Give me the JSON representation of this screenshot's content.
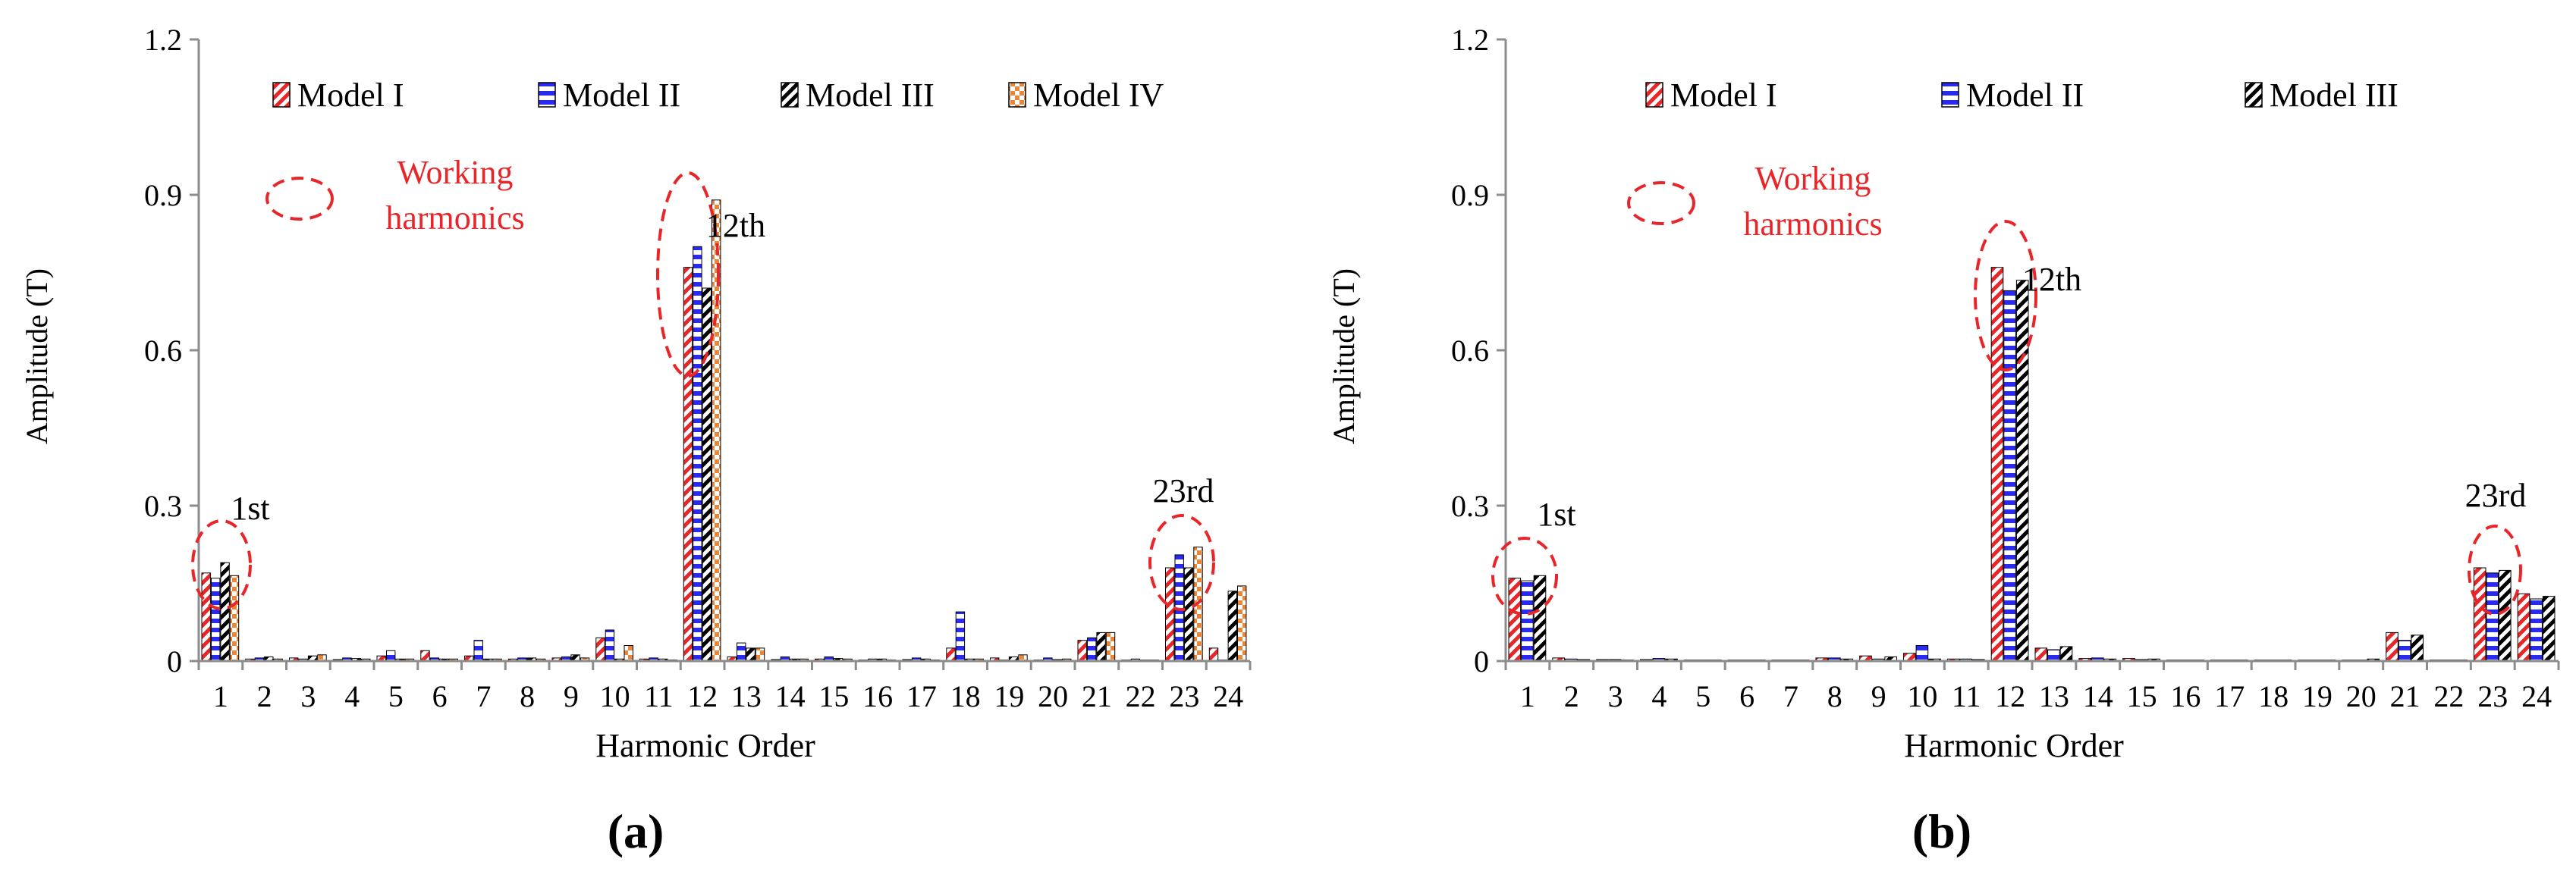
{
  "figure": {
    "panels": [
      {
        "panel_label": "(a)",
        "xlabel": "Harmonic Order",
        "ylabel": "Amplitude (T)",
        "legend": [
          "Model I",
          "Model II",
          "Model III",
          "Model IV"
        ],
        "legend_note": [
          "Working",
          "harmonics"
        ],
        "annotations": [
          "1st",
          "12th",
          "23rd"
        ]
      },
      {
        "panel_label": "(b)",
        "xlabel": "Harmonic Order",
        "ylabel": "Amplitude (T)",
        "legend": [
          "Model I",
          "Model II",
          "Model III"
        ],
        "legend_note": [
          "Working",
          "harmonics"
        ],
        "annotations": [
          "1st",
          "12th",
          "23rd"
        ]
      }
    ],
    "colors": {
      "model_i": "#e8262a",
      "model_ii": "#2a2aee",
      "model_iii": "#000000",
      "model_iv": "#e8873a",
      "ellipse": "#e8262a",
      "axis": "#8c8c8c"
    }
  },
  "chart_data": [
    {
      "type": "bar",
      "title": "",
      "xlabel": "Harmonic Order",
      "ylabel": "Amplitude (T)",
      "ylim": [
        0,
        1.2
      ],
      "yticks": [
        "0",
        "0.3",
        "0.6",
        "0.9",
        "1.2"
      ],
      "categories": [
        "1",
        "2",
        "3",
        "4",
        "5",
        "6",
        "7",
        "8",
        "9",
        "10",
        "11",
        "12",
        "13",
        "14",
        "15",
        "16",
        "17",
        "18",
        "19",
        "20",
        "21",
        "22",
        "23",
        "24"
      ],
      "series": [
        {
          "name": "Model I",
          "values": [
            0.17,
            0.004,
            0.006,
            0.003,
            0.01,
            0.02,
            0.01,
            0.004,
            0.006,
            0.045,
            0.004,
            0.76,
            0.008,
            0.003,
            0.004,
            0.002,
            0.003,
            0.025,
            0.006,
            0.002,
            0.04,
            0.002,
            0.18,
            0.025
          ]
        },
        {
          "name": "Model II",
          "values": [
            0.16,
            0.006,
            0.004,
            0.006,
            0.02,
            0.006,
            0.04,
            0.006,
            0.008,
            0.06,
            0.006,
            0.8,
            0.035,
            0.008,
            0.008,
            0.004,
            0.006,
            0.095,
            0.002,
            0.006,
            0.045,
            0.004,
            0.205,
            0.002
          ]
        },
        {
          "name": "Model III",
          "values": [
            0.19,
            0.008,
            0.01,
            0.005,
            0.004,
            0.004,
            0.004,
            0.006,
            0.012,
            0.004,
            0.004,
            0.72,
            0.025,
            0.004,
            0.005,
            0.004,
            0.004,
            0.004,
            0.008,
            0.003,
            0.055,
            0.002,
            0.18,
            0.135
          ]
        },
        {
          "name": "Model IV",
          "values": [
            0.165,
            0.004,
            0.012,
            0.004,
            0.004,
            0.004,
            0.004,
            0.004,
            0.006,
            0.03,
            0.002,
            0.89,
            0.025,
            0.004,
            0.004,
            0.002,
            0.002,
            0.004,
            0.012,
            0.004,
            0.055,
            0.002,
            0.22,
            0.145
          ]
        }
      ],
      "annotations": [
        {
          "text": "1st",
          "category": "1"
        },
        {
          "text": "12th",
          "category": "12"
        },
        {
          "text": "23rd",
          "category": "23"
        }
      ],
      "legend_position": "top",
      "grid": false
    },
    {
      "type": "bar",
      "title": "",
      "xlabel": "Harmonic Order",
      "ylabel": "Amplitude (T)",
      "ylim": [
        0,
        1.2
      ],
      "yticks": [
        "0",
        "0.3",
        "0.6",
        "0.9",
        "1.2"
      ],
      "categories": [
        "1",
        "2",
        "3",
        "4",
        "5",
        "6",
        "7",
        "8",
        "9",
        "10",
        "11",
        "12",
        "13",
        "14",
        "15",
        "16",
        "17",
        "18",
        "19",
        "20",
        "21",
        "22",
        "23",
        "24"
      ],
      "series": [
        {
          "name": "Model I",
          "values": [
            0.16,
            0.006,
            0.003,
            0.003,
            0.002,
            0.002,
            0.002,
            0.006,
            0.01,
            0.015,
            0.004,
            0.76,
            0.025,
            0.005,
            0.005,
            0.002,
            0.002,
            0.002,
            0.002,
            0.002,
            0.055,
            0.002,
            0.18,
            0.13
          ]
        },
        {
          "name": "Model II",
          "values": [
            0.155,
            0.004,
            0.003,
            0.005,
            0.002,
            0.002,
            0.002,
            0.006,
            0.004,
            0.03,
            0.004,
            0.715,
            0.022,
            0.006,
            0.003,
            0.002,
            0.002,
            0.002,
            0.002,
            0.002,
            0.04,
            0.002,
            0.17,
            0.12
          ]
        },
        {
          "name": "Model III",
          "values": [
            0.165,
            0.003,
            0.002,
            0.004,
            0.002,
            0.002,
            0.002,
            0.004,
            0.008,
            0.004,
            0.003,
            0.735,
            0.028,
            0.004,
            0.004,
            0.002,
            0.002,
            0.002,
            0.002,
            0.004,
            0.05,
            0.002,
            0.175,
            0.125
          ]
        }
      ],
      "annotations": [
        {
          "text": "1st",
          "category": "1"
        },
        {
          "text": "12th",
          "category": "12"
        },
        {
          "text": "23rd",
          "category": "23"
        }
      ],
      "legend_position": "top",
      "grid": false
    }
  ]
}
